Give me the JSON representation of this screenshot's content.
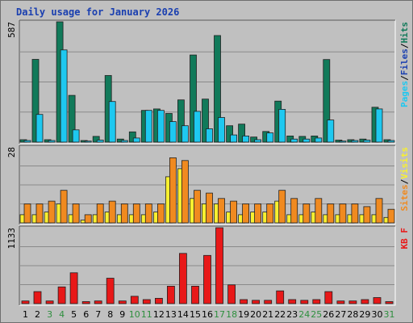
{
  "colors": {
    "hits": "#117a5a",
    "files": "#1ec8f0",
    "pages": "#1ec8f0",
    "visits": "#f8f030",
    "sites": "#f08a20",
    "kbf": "#e81818",
    "frame_bg": "#c0c0c0",
    "title": "#1a3fb0",
    "weekend": "#2e8f3e",
    "weekday": "#000000"
  },
  "chart_data": {
    "type": "bar",
    "title": "Daily usage for January 2026",
    "categories": [
      "1",
      "2",
      "3",
      "4",
      "5",
      "6",
      "7",
      "8",
      "9",
      "10",
      "11",
      "12",
      "13",
      "14",
      "15",
      "16",
      "17",
      "18",
      "19",
      "20",
      "21",
      "22",
      "23",
      "24",
      "25",
      "26",
      "27",
      "28",
      "29",
      "30",
      "31"
    ],
    "weekend_days": [
      "3",
      "4",
      "10",
      "11",
      "17",
      "18",
      "24",
      "25",
      "31"
    ],
    "panels": [
      {
        "id": "hits-files",
        "ymax_label": "587",
        "ylim": [
          0,
          587
        ],
        "legend": [
          {
            "text": "Pages",
            "color": "#1ec8f0"
          },
          {
            "text": "Files",
            "color": "#1a3fb0"
          },
          {
            "text": "Hits",
            "color": "#117a5a"
          }
        ],
        "series": [
          {
            "key": "hits",
            "color": "#117a5a",
            "values": [
              12,
              404,
              12,
              587,
              228,
              8,
              28,
              325,
              15,
              50,
              155,
              162,
              140,
              206,
              425,
              210,
              520,
              80,
              88,
              25,
              52,
              200,
              30,
              28,
              30,
              403,
              10,
              12,
              15,
              170,
              12
            ]
          },
          {
            "key": "files",
            "color": "#1ec8f0",
            "values": [
              8,
              135,
              8,
              450,
              60,
              5,
              10,
              198,
              8,
              20,
              155,
              155,
              100,
              80,
              150,
              65,
              120,
              35,
              30,
              12,
              45,
              160,
              15,
              15,
              20,
              108,
              5,
              8,
              10,
              162,
              8
            ]
          }
        ]
      },
      {
        "id": "visits-sites",
        "ymax_label": "28",
        "ylim": [
          0,
          28
        ],
        "legend": [
          {
            "text": "Sites",
            "color": "#f08a20"
          },
          {
            "text": "Visits",
            "color": "#f8f030"
          }
        ],
        "series": [
          {
            "key": "visits",
            "color": "#f8f030",
            "values": [
              3,
              3,
              4,
              7,
              3,
              1,
              3,
              4,
              3,
              3,
              3,
              4,
              17,
              20,
              9,
              7,
              7,
              4,
              3,
              4,
              4,
              8,
              3,
              3,
              4,
              3,
              3,
              3,
              3,
              3,
              2
            ]
          },
          {
            "key": "sites",
            "color": "#f08a20",
            "values": [
              7,
              7,
              8,
              12,
              7,
              3,
              7,
              8,
              7,
              7,
              7,
              7,
              24,
              23,
              12,
              11,
              9,
              8,
              7,
              7,
              7,
              12,
              9,
              7,
              9,
              7,
              7,
              7,
              6,
              9,
              5
            ]
          }
        ]
      },
      {
        "id": "kbf",
        "ymax_label": "1133",
        "ylim": [
          0,
          1133
        ],
        "legend": [
          {
            "text": "KB F",
            "color": "#e81818"
          }
        ],
        "series": [
          {
            "key": "kbf",
            "color": "#e81818",
            "values": [
              40,
              180,
              40,
              250,
              460,
              30,
              40,
              380,
              40,
              110,
              60,
              80,
              260,
              750,
              260,
              720,
              1133,
              280,
              60,
              50,
              50,
              190,
              60,
              50,
              60,
              180,
              40,
              40,
              60,
              90,
              30
            ]
          }
        ]
      }
    ]
  }
}
